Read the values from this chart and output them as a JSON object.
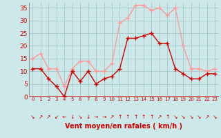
{
  "x": [
    0,
    1,
    2,
    3,
    4,
    5,
    6,
    7,
    8,
    9,
    10,
    11,
    12,
    13,
    14,
    15,
    16,
    17,
    18,
    19,
    20,
    21,
    22,
    23
  ],
  "wind_avg": [
    11,
    11,
    7,
    4,
    0,
    10,
    6,
    10,
    5,
    7,
    8,
    11,
    23,
    23,
    24,
    25,
    21,
    21,
    11,
    9,
    7,
    7,
    9,
    9
  ],
  "wind_gust": [
    15,
    17,
    11,
    11,
    4,
    11,
    14,
    14,
    10,
    10,
    13,
    29,
    31,
    36,
    36,
    34,
    35,
    32,
    35,
    20,
    11,
    11,
    10,
    11
  ],
  "ylim": [
    0,
    37
  ],
  "yticks": [
    0,
    5,
    10,
    15,
    20,
    25,
    30,
    35
  ],
  "bg_color": "#cce8e8",
  "grid_color": "#aacccc",
  "avg_color": "#cc0000",
  "gust_color": "#ff9999",
  "xlabel": "Vent moyen/en rafales ( km/h )",
  "xlabel_color": "#cc0000",
  "tick_color": "#cc0000",
  "arrow_row": [
    "↘",
    "↗",
    "↗",
    "↙",
    "←",
    "↓",
    "↘",
    "↓",
    "→",
    "→",
    "↗",
    "↑",
    "↑",
    "↑",
    "↑",
    "↑",
    "↗",
    "↑",
    "↘",
    "↘",
    "↘",
    "↘",
    "↗",
    "↘"
  ],
  "marker_size": 2.5,
  "linewidth": 1.0
}
